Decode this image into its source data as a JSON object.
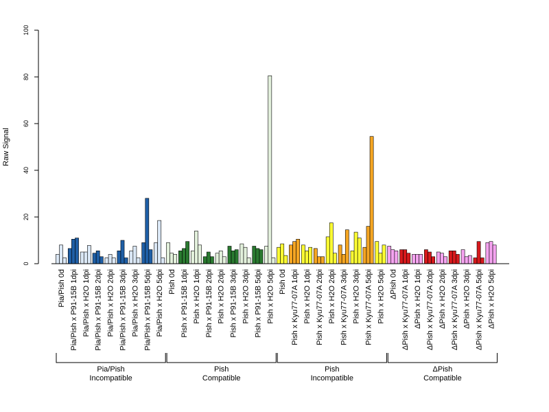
{
  "chart_data": {
    "type": "bar",
    "ylabel": "Raw Signal",
    "ylim": [
      0,
      100
    ],
    "yticks": [
      0,
      20,
      40,
      60,
      80,
      100
    ],
    "grid": false,
    "bars_per_category": 3,
    "colors": {
      "light_blue": "#dbe8f6",
      "dark_blue": "#1f5fa6",
      "light_green": "#e3f1dc",
      "dark_green": "#2a7a30",
      "yellow": "#ffff33",
      "orange": "#f5a623",
      "pink": "#f5a3f0",
      "red": "#d7191c"
    },
    "categories": [
      {
        "label": "Pia/Pish 0d",
        "color": "light_blue",
        "values": [
          4,
          8,
          2.5
        ]
      },
      {
        "label": "Pia/Pish x P91-15B 1dpi",
        "color": "dark_blue",
        "values": [
          6.5,
          10.5,
          11
        ]
      },
      {
        "label": "Pia/Pish x H2O 1dpi",
        "color": "light_blue",
        "values": [
          5,
          5,
          7.8
        ]
      },
      {
        "label": "Pia/Pish x P91-15B 2dpi",
        "color": "dark_blue",
        "values": [
          4.5,
          5.5,
          3
        ]
      },
      {
        "label": "Pia/Pish x H2O 2dpi",
        "color": "light_blue",
        "values": [
          2.5,
          4,
          2.5
        ]
      },
      {
        "label": "Pia/Pish x P91-15B 3dpi",
        "color": "dark_blue",
        "values": [
          5.5,
          10,
          2.5
        ]
      },
      {
        "label": "Pia/Pish x H2O 3dpi",
        "color": "light_blue",
        "values": [
          5.5,
          7.5,
          2.5
        ]
      },
      {
        "label": "Pia/Pish x P91-15B 5dpi",
        "color": "dark_blue",
        "values": [
          9,
          28,
          6
        ]
      },
      {
        "label": "Pia/Pish x H2O 5dpi",
        "color": "light_blue",
        "values": [
          9,
          18.5,
          2.5
        ]
      },
      {
        "label": "Pish 0d",
        "color": "light_green",
        "values": [
          9,
          4.5,
          4
        ]
      },
      {
        "label": "Pish x P91-15B 1dpi",
        "color": "dark_green",
        "values": [
          5.5,
          6.5,
          9.5
        ]
      },
      {
        "label": "Pish x H2O 1dpi",
        "color": "light_green",
        "values": [
          5.5,
          14,
          8
        ]
      },
      {
        "label": "Pish x P91-15B 2dpi",
        "color": "dark_green",
        "values": [
          3,
          5,
          3
        ]
      },
      {
        "label": "Pish x H2O 2dpi",
        "color": "light_green",
        "values": [
          4.5,
          5.5,
          3
        ]
      },
      {
        "label": "Pish x P91-15B 3dpi",
        "color": "dark_green",
        "values": [
          7.5,
          5.5,
          6
        ]
      },
      {
        "label": "Pish x H2O 3dpi",
        "color": "light_green",
        "values": [
          8.5,
          7,
          2.5
        ]
      },
      {
        "label": "Pish x P91-15B 5dpi",
        "color": "dark_green",
        "values": [
          7.5,
          6.5,
          6
        ]
      },
      {
        "label": "Pish x H2O 5dpi",
        "color": "light_green",
        "values": [
          7.5,
          80.5,
          2.5
        ]
      },
      {
        "label": "Pish 0d",
        "color": "yellow",
        "values": [
          7,
          8.5,
          3.5
        ]
      },
      {
        "label": "Pish x Kyu77-07A 1dpi",
        "color": "orange",
        "values": [
          8,
          9.5,
          10.5
        ]
      },
      {
        "label": "Pish x H2O 1dpi",
        "color": "yellow",
        "values": [
          8,
          5.5,
          7
        ]
      },
      {
        "label": "Pish x Kyu77-07A 2dpi",
        "color": "orange",
        "values": [
          6.5,
          3,
          3
        ]
      },
      {
        "label": "Pish x H2O 2dpi",
        "color": "yellow",
        "values": [
          11.5,
          17.5,
          4.5
        ]
      },
      {
        "label": "Pish x Kyu77-07A 3dpi",
        "color": "orange",
        "values": [
          8,
          4,
          14.5
        ]
      },
      {
        "label": "Pish x H2O 3dpi",
        "color": "yellow",
        "values": [
          5.5,
          13.5,
          11
        ]
      },
      {
        "label": "Pish x Kyu77-07A 5dpi",
        "color": "orange",
        "values": [
          7,
          16,
          54.5
        ]
      },
      {
        "label": "Pish x H2O 5dpi",
        "color": "yellow",
        "values": [
          9.5,
          4.5,
          8
        ]
      },
      {
        "label": "ΔPish 0d",
        "color": "pink",
        "values": [
          7.5,
          6,
          5.5
        ]
      },
      {
        "label": "ΔPish x Kyu77-07A 1dpi",
        "color": "red",
        "values": [
          6,
          6,
          4.5
        ]
      },
      {
        "label": "ΔPish x H2O 1dpi",
        "color": "pink",
        "values": [
          4,
          4,
          4
        ]
      },
      {
        "label": "ΔPish x Kyu77-07A 2dpi",
        "color": "red",
        "values": [
          6,
          5,
          3
        ]
      },
      {
        "label": "ΔPish x H2O 2dpi",
        "color": "pink",
        "values": [
          5,
          4.5,
          3
        ]
      },
      {
        "label": "ΔPish x Kyu77-07A 3dpi",
        "color": "red",
        "values": [
          5.5,
          5.5,
          4
        ]
      },
      {
        "label": "ΔPish x H2O 3dpi",
        "color": "pink",
        "values": [
          6,
          3,
          3.5
        ]
      },
      {
        "label": "ΔPish x Kyu77-07A 5dpi",
        "color": "red",
        "values": [
          2.5,
          9.5,
          2.5
        ]
      },
      {
        "label": "ΔPish x H2O 5dpi",
        "color": "pink",
        "values": [
          9,
          9.5,
          8
        ]
      }
    ],
    "groups": [
      {
        "line1": "Pia/Pish",
        "line2": "Incompatible",
        "start": 0,
        "end": 8
      },
      {
        "line1": "Pish",
        "line2": "Compatible",
        "start": 9,
        "end": 17
      },
      {
        "line1": "Pish",
        "line2": "Incompatible",
        "start": 18,
        "end": 26
      },
      {
        "line1": "ΔPish",
        "line2": "Compatible",
        "start": 27,
        "end": 35
      }
    ]
  }
}
